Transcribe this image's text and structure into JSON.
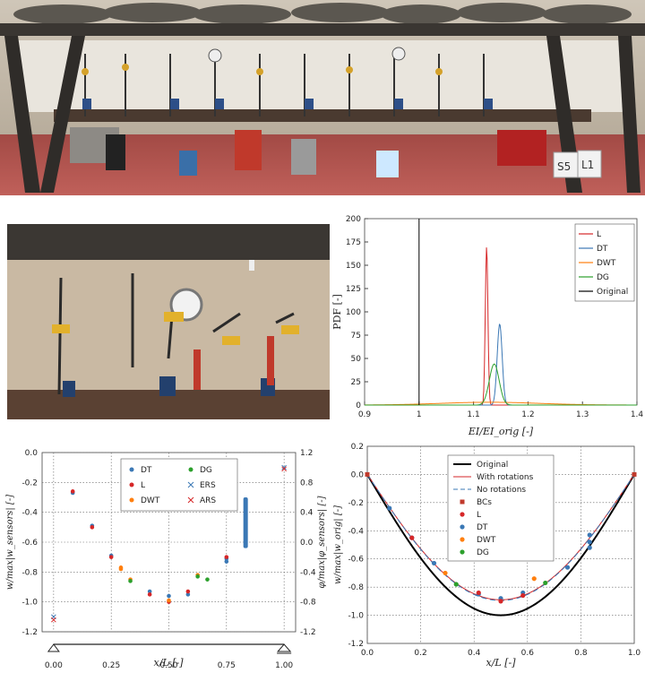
{
  "photos": {
    "rig_top": {
      "description": "Beam test rig with dial gauges",
      "sign_left": "S5",
      "sign_right": "L1"
    },
    "rig_closeup": {
      "description": "Close-up of sensors on beam"
    }
  },
  "chart_data": [
    {
      "id": "pdf",
      "type": "line",
      "ylabel": "PDF [-]",
      "xlabel": "EI/EI_orig [-]",
      "xlim": [
        0.9,
        1.4
      ],
      "ylim": [
        0,
        200
      ],
      "xticks": [
        "0.9",
        "1",
        "1.1",
        "1.2",
        "1.3",
        "1.4"
      ],
      "yticks": [
        "0",
        "25",
        "50",
        "75",
        "100",
        "125",
        "150",
        "175",
        "200"
      ],
      "grid": false,
      "legend_position": "top-right",
      "series": [
        {
          "name": "L",
          "color": "#d62728",
          "mean": 1.124,
          "peak": 170
        },
        {
          "name": "DT",
          "color": "#3b78b5",
          "mean": 1.148,
          "peak": 87
        },
        {
          "name": "DWT",
          "color": "#ff7f0e",
          "mean": 1.13,
          "peak": 3
        },
        {
          "name": "DG",
          "color": "#2ca02c",
          "mean": 1.138,
          "peak": 44
        },
        {
          "name": "Original",
          "color": "#000000",
          "x_line": 1.0
        }
      ]
    },
    {
      "id": "sensors",
      "type": "scatter",
      "xlabel": "x/L [-]",
      "ylabel_left": "w/max|w_sensors| [-]",
      "ylabel_right": "φ/max|φ_sensors| [-]",
      "xlim": [
        -0.05,
        1.05
      ],
      "ylim": [
        -1.2,
        0.0
      ],
      "ylim_right": [
        -1.2,
        1.2
      ],
      "xticks": [
        "0.00",
        "0.25",
        "0.50",
        "0.75",
        "1.00"
      ],
      "yticks": [
        "0.0",
        "-0.2",
        "-0.4",
        "-0.6",
        "-0.8",
        "-1.0",
        "-1.2"
      ],
      "yticks_right": [
        "1.2",
        "0.8",
        "0.4",
        "0.0",
        "-0.4",
        "-0.8",
        "-1.2"
      ],
      "grid": true,
      "legend_position": "top-center",
      "legend": [
        {
          "name": "DT",
          "color": "#3b78b5",
          "marker": "dot"
        },
        {
          "name": "DG",
          "color": "#2ca02c",
          "marker": "dot"
        },
        {
          "name": "L",
          "color": "#d62728",
          "marker": "dot"
        },
        {
          "name": "ERS",
          "color": "#3b78b5",
          "marker": "x"
        },
        {
          "name": "DWT",
          "color": "#ff7f0e",
          "marker": "dot"
        },
        {
          "name": "ARS",
          "color": "#d62728",
          "marker": "x"
        }
      ],
      "points": [
        {
          "s": "DT",
          "x": 0.083,
          "y": -0.27
        },
        {
          "s": "DT",
          "x": 0.167,
          "y": -0.49
        },
        {
          "s": "DT",
          "x": 0.25,
          "y": -0.69
        },
        {
          "s": "DT",
          "x": 0.417,
          "y": -0.93
        },
        {
          "s": "DT",
          "x": 0.5,
          "y": -0.96
        },
        {
          "s": "DT",
          "x": 0.583,
          "y": -0.95
        },
        {
          "s": "DT",
          "x": 0.75,
          "y": -0.71
        },
        {
          "s": "DT",
          "x": 0.75,
          "y": -0.73
        },
        {
          "s": "L",
          "x": 0.083,
          "y": -0.26
        },
        {
          "s": "L",
          "x": 0.167,
          "y": -0.5
        },
        {
          "s": "L",
          "x": 0.25,
          "y": -0.7
        },
        {
          "s": "L",
          "x": 0.417,
          "y": -0.95
        },
        {
          "s": "L",
          "x": 0.5,
          "y": -1.0
        },
        {
          "s": "L",
          "x": 0.583,
          "y": -0.93
        },
        {
          "s": "L",
          "x": 0.75,
          "y": -0.7
        },
        {
          "s": "DWT",
          "x": 0.292,
          "y": -0.77
        },
        {
          "s": "DWT",
          "x": 0.333,
          "y": -0.85
        },
        {
          "s": "DWT",
          "x": 0.5,
          "y": -0.99
        },
        {
          "s": "DWT",
          "x": 0.625,
          "y": -0.82
        },
        {
          "s": "DWT",
          "x": 0.292,
          "y": -0.78
        },
        {
          "s": "DG",
          "x": 0.333,
          "y": -0.86
        },
        {
          "s": "DG",
          "x": 0.667,
          "y": -0.85
        },
        {
          "s": "DG",
          "x": 0.625,
          "y": -0.83
        }
      ],
      "rotations": [
        {
          "s": "ERS",
          "x": 0.0,
          "phi": -1.0
        },
        {
          "s": "ERS",
          "x": 1.0,
          "phi": 1.0
        },
        {
          "s": "ARS",
          "x": 0.0,
          "phi": -1.04
        },
        {
          "s": "ARS",
          "x": 1.0,
          "phi": 0.98
        }
      ],
      "dt_band": {
        "x": 0.833,
        "y_top": -0.3,
        "y_bottom": -0.64
      }
    },
    {
      "id": "deflection",
      "type": "line",
      "xlabel": "x/L [-]",
      "ylabel": "w/max|w_orig| [-]",
      "xlim": [
        0,
        1
      ],
      "ylim": [
        -1.2,
        0.2
      ],
      "xticks": [
        "0.0",
        "0.2",
        "0.4",
        "0.6",
        "0.8",
        "1.0"
      ],
      "yticks": [
        "0.2",
        "0.0",
        "-0.2",
        "-0.4",
        "-0.6",
        "-0.8",
        "-1.0",
        "-1.2"
      ],
      "grid": true,
      "legend_position": "top-center",
      "legend": [
        {
          "name": "Original",
          "color": "#000000",
          "style": "thick"
        },
        {
          "name": "With rotations",
          "color": "#d62728",
          "style": "line"
        },
        {
          "name": "No rotations",
          "color": "#3b78b5",
          "style": "dash"
        },
        {
          "name": "BCs",
          "color": "#c0392b",
          "style": "square"
        },
        {
          "name": "L",
          "color": "#d62728",
          "style": "dot"
        },
        {
          "name": "DT",
          "color": "#3b78b5",
          "style": "dot"
        },
        {
          "name": "DWT",
          "color": "#ff7f0e",
          "style": "dot"
        },
        {
          "name": "DG",
          "color": "#2ca02c",
          "style": "dot"
        }
      ],
      "original_peak": -1.0,
      "fitted_peak": -0.89,
      "bcs": [
        {
          "x": 0.0,
          "y": 0.0
        },
        {
          "x": 1.0,
          "y": 0.0
        }
      ],
      "points": [
        {
          "s": "DT",
          "x": 0.083,
          "y": -0.24
        },
        {
          "s": "DT",
          "x": 0.167,
          "y": -0.45
        },
        {
          "s": "DT",
          "x": 0.25,
          "y": -0.63
        },
        {
          "s": "DT",
          "x": 0.417,
          "y": -0.85
        },
        {
          "s": "DT",
          "x": 0.5,
          "y": -0.88
        },
        {
          "s": "DT",
          "x": 0.583,
          "y": -0.84
        },
        {
          "s": "DT",
          "x": 0.75,
          "y": -0.66
        },
        {
          "s": "DT",
          "x": 0.833,
          "y": -0.43
        },
        {
          "s": "DT",
          "x": 0.833,
          "y": -0.48
        },
        {
          "s": "DT",
          "x": 0.833,
          "y": -0.52
        },
        {
          "s": "L",
          "x": 0.167,
          "y": -0.45
        },
        {
          "s": "L",
          "x": 0.417,
          "y": -0.84
        },
        {
          "s": "L",
          "x": 0.5,
          "y": -0.9
        },
        {
          "s": "L",
          "x": 0.583,
          "y": -0.86
        },
        {
          "s": "DWT",
          "x": 0.292,
          "y": -0.7
        },
        {
          "s": "DWT",
          "x": 0.625,
          "y": -0.74
        },
        {
          "s": "DG",
          "x": 0.333,
          "y": -0.78
        },
        {
          "s": "DG",
          "x": 0.667,
          "y": -0.77
        }
      ]
    }
  ]
}
